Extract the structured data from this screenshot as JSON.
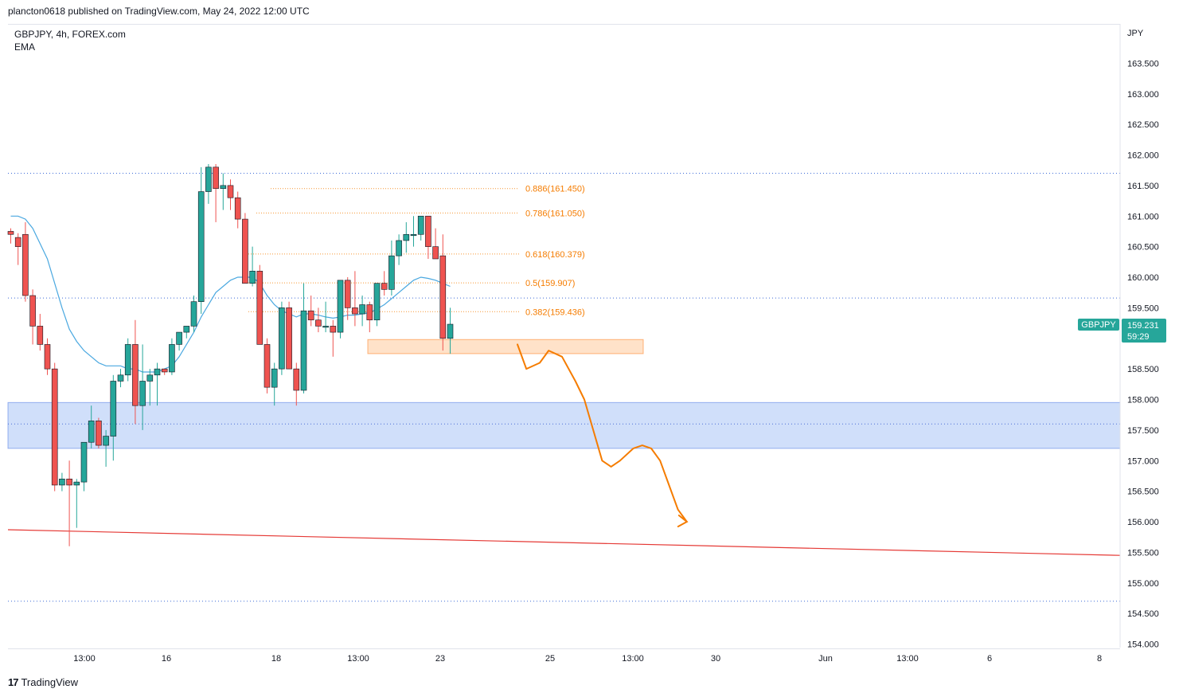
{
  "header": {
    "published": "plancton0618 published on TradingView.com, May 24, 2022 12:00 UTC"
  },
  "legend": {
    "symbol": "GBPJPY, 4h, FOREX.com",
    "indicator": "EMA"
  },
  "footer": {
    "brand": "TradingView"
  },
  "chart_data": {
    "type": "candlestick",
    "currency_label": "JPY",
    "ylim": [
      154.0,
      164.0
    ],
    "y_ticks": [
      "163.500",
      "163.000",
      "162.500",
      "162.000",
      "161.500",
      "161.000",
      "160.500",
      "160.000",
      "159.500",
      "159.000",
      "158.500",
      "158.000",
      "157.500",
      "157.000",
      "156.500",
      "156.000",
      "155.500",
      "155.000",
      "154.500",
      "154.000"
    ],
    "x_ticks": [
      "13:00",
      "16",
      "18",
      "13:00",
      "23",
      "25",
      "13:00",
      "30",
      "Jun",
      "13:00",
      "6",
      "8"
    ],
    "price_badge": {
      "symbol": "GBPJPY",
      "price": "159.231",
      "countdown": "59:29"
    },
    "fibonacci": [
      {
        "label": "0.886(161.450)",
        "level": 161.45
      },
      {
        "label": "0.786(161.050)",
        "level": 161.05
      },
      {
        "label": "0.618(160.379)",
        "level": 160.379
      },
      {
        "label": "0.5(159.907)",
        "level": 159.907
      },
      {
        "label": "0.382(159.436)",
        "level": 159.436
      }
    ],
    "horizontal_levels": [
      161.7,
      159.66,
      157.6,
      154.7
    ],
    "support_zone": [
      157.2,
      157.95
    ],
    "resistance_box": [
      158.75,
      158.98
    ],
    "trendline": [
      155.87,
      155.45
    ],
    "candles": [
      [
        160.75,
        160.8,
        160.55,
        160.7
      ],
      [
        160.65,
        160.72,
        160.2,
        160.5
      ],
      [
        160.7,
        160.9,
        159.6,
        159.7
      ],
      [
        159.7,
        159.8,
        158.9,
        159.2
      ],
      [
        159.2,
        159.4,
        158.8,
        158.9
      ],
      [
        158.9,
        159.0,
        158.4,
        158.5
      ],
      [
        158.5,
        158.6,
        156.5,
        156.6
      ],
      [
        156.6,
        156.8,
        156.5,
        156.7
      ],
      [
        156.7,
        157.0,
        155.6,
        156.6
      ],
      [
        156.6,
        156.7,
        155.9,
        156.65
      ],
      [
        156.65,
        157.3,
        156.5,
        157.3
      ],
      [
        157.3,
        157.9,
        157.2,
        157.65
      ],
      [
        157.65,
        157.7,
        157.2,
        157.25
      ],
      [
        157.25,
        157.5,
        156.9,
        157.4
      ],
      [
        157.4,
        158.4,
        157.0,
        158.3
      ],
      [
        158.3,
        158.5,
        158.2,
        158.4
      ],
      [
        158.4,
        159.0,
        158.3,
        158.9
      ],
      [
        158.9,
        159.3,
        157.6,
        157.9
      ],
      [
        157.9,
        158.9,
        157.5,
        158.3
      ],
      [
        158.3,
        158.5,
        157.9,
        158.4
      ],
      [
        158.4,
        158.6,
        157.9,
        158.5
      ],
      [
        158.5,
        158.5,
        158.4,
        158.45
      ],
      [
        158.45,
        159.0,
        158.4,
        158.9
      ],
      [
        158.9,
        159.1,
        158.8,
        159.1
      ],
      [
        159.1,
        159.2,
        159.0,
        159.2
      ],
      [
        159.2,
        159.7,
        159.1,
        159.6
      ],
      [
        159.6,
        161.8,
        159.4,
        161.4
      ],
      [
        161.4,
        161.85,
        161.2,
        161.8
      ],
      [
        161.8,
        161.85,
        160.9,
        161.45
      ],
      [
        161.45,
        161.7,
        161.1,
        161.5
      ],
      [
        161.5,
        161.6,
        161.1,
        161.3
      ],
      [
        161.3,
        161.4,
        160.8,
        160.95
      ],
      [
        160.95,
        161.05,
        159.9,
        159.9
      ],
      [
        159.9,
        160.5,
        159.85,
        160.1
      ],
      [
        160.1,
        160.2,
        158.9,
        158.9
      ],
      [
        158.9,
        159.0,
        158.1,
        158.2
      ],
      [
        158.2,
        158.6,
        157.9,
        158.5
      ],
      [
        158.5,
        159.6,
        158.4,
        159.5
      ],
      [
        159.5,
        159.6,
        158.5,
        158.5
      ],
      [
        158.5,
        158.6,
        157.9,
        158.15
      ],
      [
        158.15,
        159.9,
        158.1,
        159.45
      ],
      [
        159.45,
        159.7,
        159.2,
        159.3
      ],
      [
        159.3,
        159.5,
        159.1,
        159.2
      ],
      [
        159.2,
        159.6,
        159.1,
        159.2
      ],
      [
        159.2,
        159.3,
        158.7,
        159.1
      ],
      [
        159.1,
        159.9,
        159.0,
        159.95
      ],
      [
        159.95,
        160.0,
        159.3,
        159.5
      ],
      [
        159.5,
        160.1,
        159.2,
        159.4
      ],
      [
        159.4,
        159.7,
        159.2,
        159.55
      ],
      [
        159.55,
        159.6,
        159.1,
        159.3
      ],
      [
        159.3,
        159.9,
        159.2,
        159.9
      ],
      [
        159.9,
        160.1,
        159.7,
        159.8
      ],
      [
        159.8,
        160.6,
        159.7,
        160.35
      ],
      [
        160.35,
        160.7,
        160.2,
        160.6
      ],
      [
        160.6,
        160.9,
        160.4,
        160.7
      ],
      [
        160.7,
        161.0,
        160.5,
        160.7
      ],
      [
        160.7,
        161.0,
        160.6,
        161.0
      ],
      [
        161.0,
        161.0,
        160.3,
        160.5
      ],
      [
        160.5,
        160.8,
        160.3,
        160.3
      ],
      [
        160.35,
        160.7,
        158.8,
        159.0
      ],
      [
        159.0,
        159.5,
        158.75,
        159.231
      ]
    ],
    "ema": [
      161.0,
      161.0,
      160.95,
      160.8,
      160.55,
      160.3,
      159.9,
      159.5,
      159.15,
      158.95,
      158.8,
      158.7,
      158.6,
      158.55,
      158.55,
      158.55,
      158.5,
      158.5,
      158.45,
      158.45,
      158.45,
      158.5,
      158.55,
      158.7,
      158.9,
      159.1,
      159.35,
      159.55,
      159.75,
      159.85,
      159.95,
      160.0,
      160.0,
      160.0,
      159.9,
      159.7,
      159.55,
      159.45,
      159.4,
      159.35,
      159.4,
      159.4,
      159.38,
      159.35,
      159.33,
      159.35,
      159.38,
      159.38,
      159.4,
      159.42,
      159.48,
      159.55,
      159.65,
      159.75,
      159.85,
      159.95,
      160.0,
      159.98,
      159.95,
      159.9,
      159.85
    ],
    "projection": [
      [
        0,
        158.9
      ],
      [
        2,
        158.5
      ],
      [
        5,
        158.6
      ],
      [
        7,
        158.8
      ],
      [
        10,
        158.7
      ],
      [
        13,
        158.3
      ],
      [
        15,
        158.0
      ],
      [
        17,
        157.5
      ],
      [
        19,
        157.0
      ],
      [
        21,
        156.9
      ],
      [
        23,
        157.0
      ],
      [
        26,
        157.2
      ],
      [
        28,
        157.25
      ],
      [
        30,
        157.2
      ],
      [
        32,
        157.0
      ],
      [
        34,
        156.6
      ],
      [
        36,
        156.2
      ],
      [
        38,
        156.0
      ]
    ]
  }
}
